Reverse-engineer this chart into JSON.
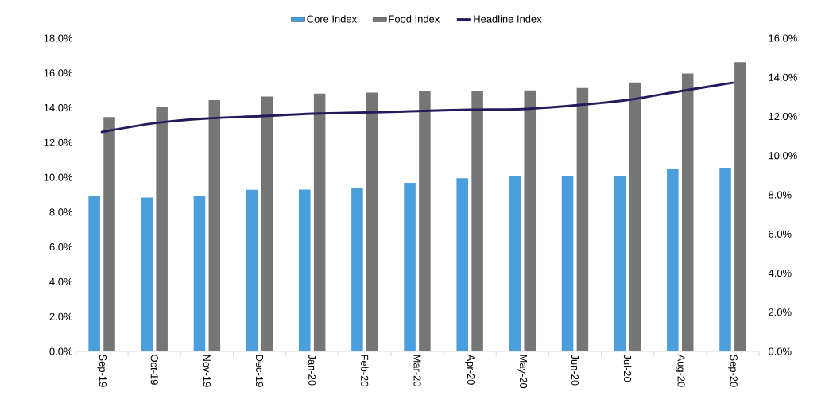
{
  "chart_data": {
    "type": "bar",
    "categories": [
      "Sep-19",
      "Oct-19",
      "Nov-19",
      "Dec-19",
      "Jan-20",
      "Feb-20",
      "Mar-20",
      "Apr-20",
      "May-20",
      "Jun-20",
      "Jul-20",
      "Aug-20",
      "Sep-20"
    ],
    "series": [
      {
        "name": "Core Index",
        "color": "#4a9edb",
        "values": [
          8.92,
          8.84,
          8.95,
          9.29,
          9.3,
          9.39,
          9.69,
          9.95,
          10.09,
          10.09,
          10.08,
          10.49,
          10.55
        ]
      },
      {
        "name": "Food Index",
        "color": "#767676",
        "values": [
          13.47,
          14.03,
          14.44,
          14.64,
          14.81,
          14.87,
          14.95,
          14.99,
          15.0,
          15.13,
          15.45,
          15.97,
          16.62
        ]
      },
      {
        "name": "Headline Index",
        "type": "line",
        "axis": "y2",
        "color": "#231b5e",
        "values": [
          11.21,
          11.66,
          11.9,
          12.01,
          12.14,
          12.2,
          12.27,
          12.35,
          12.38,
          12.57,
          12.84,
          13.29,
          13.72
        ]
      }
    ],
    "ylim": [
      0,
      18
    ],
    "yticks": [
      {
        "value": 0,
        "label": "0.0%"
      },
      {
        "value": 2,
        "label": "2.0%"
      },
      {
        "value": 4,
        "label": "4.0%"
      },
      {
        "value": 6,
        "label": "6.0%"
      },
      {
        "value": 8,
        "label": "8.0%"
      },
      {
        "value": 10,
        "label": "10.0%"
      },
      {
        "value": 12,
        "label": "12.0%"
      },
      {
        "value": 14,
        "label": "14.0%"
      },
      {
        "value": 16,
        "label": "16.0%"
      },
      {
        "value": 18,
        "label": "18.0%"
      }
    ],
    "y2lim": [
      0,
      16
    ],
    "y2ticks": [
      {
        "value": 0,
        "label": "0.0%"
      },
      {
        "value": 2,
        "label": "2.0%"
      },
      {
        "value": 4,
        "label": "4.0%"
      },
      {
        "value": 6,
        "label": "6.0%"
      },
      {
        "value": 8,
        "label": "8.0%"
      },
      {
        "value": 10,
        "label": "10.0%"
      },
      {
        "value": 12,
        "label": "12.0%"
      },
      {
        "value": 14,
        "label": "14.0%"
      },
      {
        "value": 16,
        "label": "16.0%"
      }
    ],
    "legend": "top",
    "line_style": "solid"
  }
}
